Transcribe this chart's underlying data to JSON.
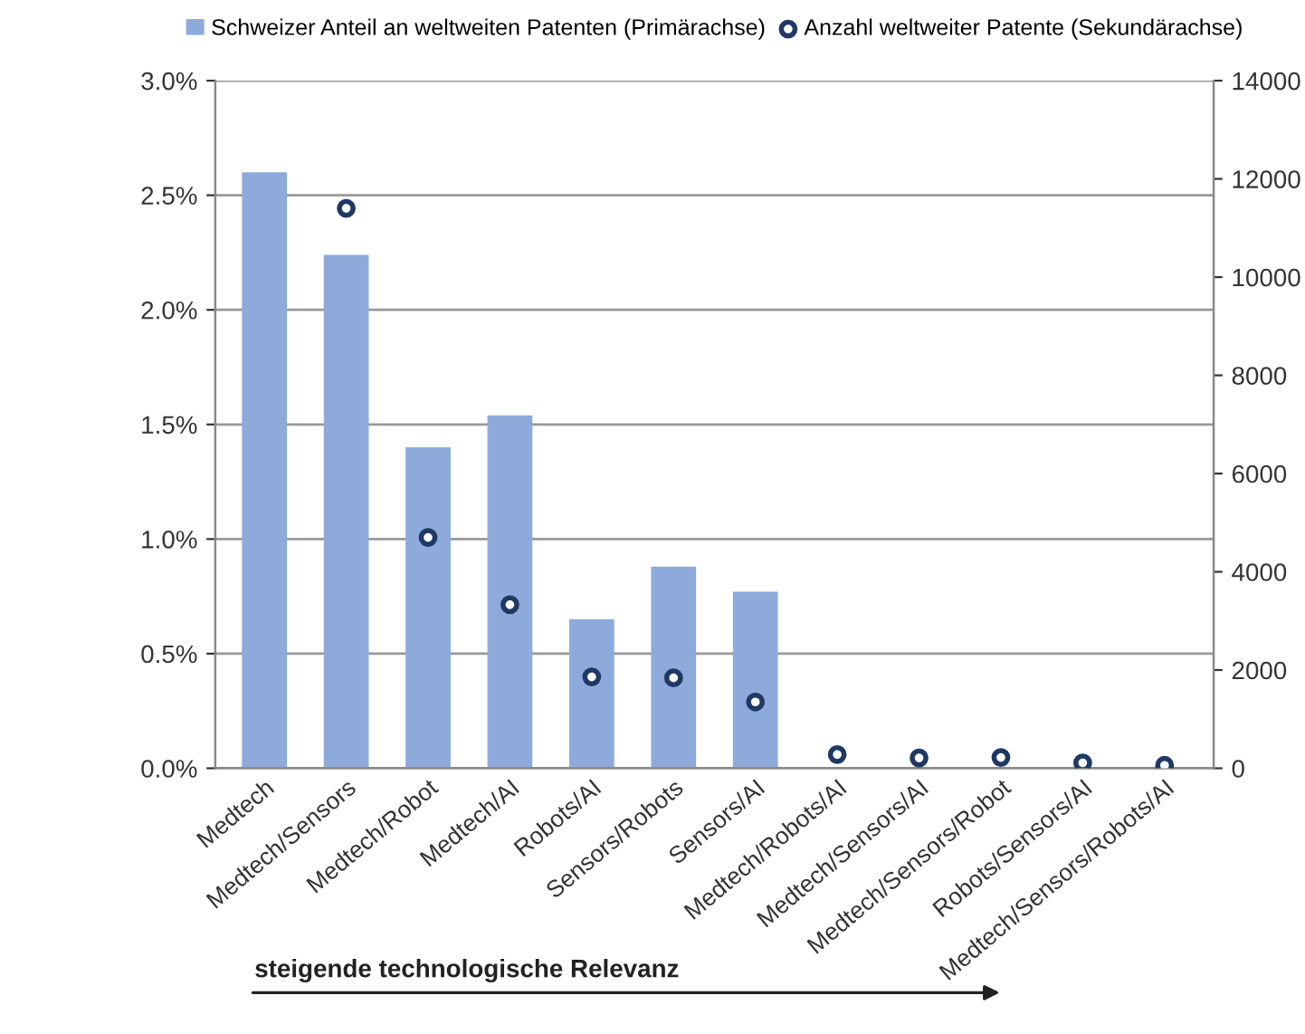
{
  "chart_data": {
    "type": "bar",
    "categories": [
      "Medtech",
      "Medtech/Sensors",
      "Medtech/Robot",
      "Medtech/AI",
      "Robots/AI",
      "Sensors/Robots",
      "Sensors/AI",
      "Medtech/Robots/AI",
      "Medtech/Sensors/AI",
      "Medtech/Sensors/Robot",
      "Robots/Sensors/AI",
      "Medtech/Sensors/Robots/AI"
    ],
    "series": [
      {
        "name": "Schweizer Anteil an weltweiten Patenten (Primärachse)",
        "color": "#8eaadb",
        "values": [
          2.6,
          2.24,
          1.4,
          1.54,
          0.65,
          0.88,
          0.77,
          0,
          0,
          0,
          0,
          0
        ]
      },
      {
        "name": "Anzahl weltweiter Patente (Sekundärachse)",
        "type": "scatter",
        "axis": "y2",
        "color": "#1f3864",
        "marker": "circle",
        "values": [
          null,
          11400,
          4700,
          3330,
          1860,
          1840,
          1350,
          280,
          210,
          220,
          110,
          60
        ]
      }
    ],
    "ylim": [
      0,
      3.0
    ],
    "yticks": [
      {
        "value": 0,
        "label": "0.0%"
      },
      {
        "value": 0.5,
        "label": "0.5%"
      },
      {
        "value": 1.0,
        "label": "1.0%"
      },
      {
        "value": 1.5,
        "label": "1.5%"
      },
      {
        "value": 2.0,
        "label": "2.0%"
      },
      {
        "value": 2.5,
        "label": "2.5%"
      },
      {
        "value": 3.0,
        "label": "3.0%"
      }
    ],
    "y2lim": [
      0,
      14000
    ],
    "y2ticks": [
      0,
      2000,
      4000,
      6000,
      8000,
      10000,
      12000,
      14000
    ],
    "grid": "y",
    "legend": "top",
    "annotations": [
      "steigende technologische Relevanz"
    ]
  }
}
